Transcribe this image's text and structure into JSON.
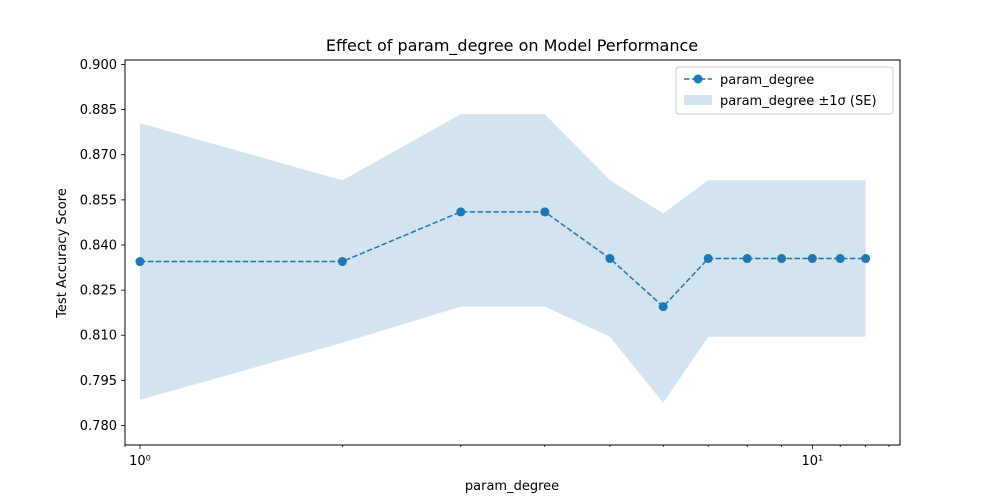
{
  "chart_data": {
    "type": "line",
    "title": "Effect of param_degree on Model Performance",
    "xlabel": "param_degree",
    "ylabel": "Test Accuracy Score",
    "xscale": "log",
    "xlim": [
      0.95,
      13.5
    ],
    "ylim": [
      0.7735,
      0.9015
    ],
    "x_ticks": [
      1,
      10
    ],
    "x_tick_labels": [
      "10⁰",
      "10¹"
    ],
    "y_ticks": [
      0.78,
      0.795,
      0.81,
      0.825,
      0.84,
      0.855,
      0.87,
      0.885,
      0.9
    ],
    "y_tick_labels": [
      "0.780",
      "0.795",
      "0.810",
      "0.825",
      "0.840",
      "0.855",
      "0.870",
      "0.885",
      "0.900"
    ],
    "grid": false,
    "legend_position": "top-right",
    "series": [
      {
        "name": "param_degree",
        "x": [
          1,
          2,
          3,
          4,
          5,
          6,
          7,
          8,
          9,
          10,
          11,
          12
        ],
        "y": [
          0.8345,
          0.8345,
          0.851,
          0.851,
          0.8355,
          0.8195,
          0.8355,
          0.8355,
          0.8355,
          0.8355,
          0.8355,
          0.8355
        ],
        "color": "#1f77b4",
        "line_style": "dashed",
        "marker": "circle"
      }
    ],
    "band": {
      "name": "param_degree ±1σ (SE)",
      "x": [
        1,
        2,
        3,
        4,
        5,
        6,
        7,
        8,
        9,
        10,
        11,
        12
      ],
      "lower": [
        0.7885,
        0.8075,
        0.8195,
        0.8195,
        0.8095,
        0.7875,
        0.8095,
        0.8095,
        0.8095,
        0.8095,
        0.8095,
        0.8095
      ],
      "upper": [
        0.8805,
        0.8615,
        0.8835,
        0.8835,
        0.8615,
        0.8505,
        0.8615,
        0.8615,
        0.8615,
        0.8615,
        0.8615,
        0.8615
      ],
      "color": "#1f77b4",
      "opacity": 0.2
    }
  }
}
